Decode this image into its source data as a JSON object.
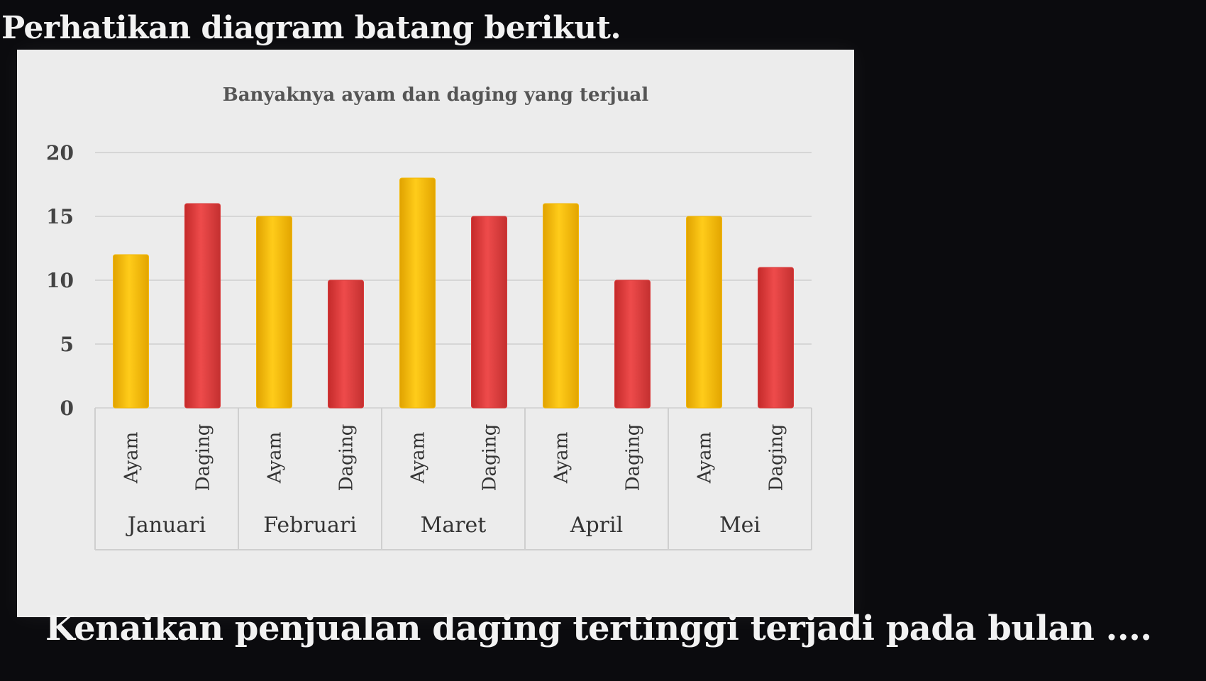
{
  "question": {
    "intro": "Perhatikan diagram batang berikut.",
    "prompt": "Kenaikan penjualan daging tertinggi terjadi pada bulan ...."
  },
  "colors": {
    "ayam": "#f2b705",
    "daging": "#d93a3a",
    "background": "#0b0b0e",
    "card": "#ececec"
  },
  "chart_data": {
    "type": "bar",
    "title": "Banyaknya ayam dan daging yang terjual",
    "ylim": [
      0,
      20
    ],
    "yticks": [
      "0",
      "5",
      "10",
      "15",
      "20"
    ],
    "grid": true,
    "groups": [
      "Januari",
      "Februari",
      "Maret",
      "April",
      "Mei"
    ],
    "subcategories": [
      "Ayam",
      "Daging"
    ],
    "bars": [
      {
        "group": "Januari",
        "label": "Ayam",
        "value": 12
      },
      {
        "group": "Januari",
        "label": "Daging",
        "value": 16
      },
      {
        "group": "Februari",
        "label": "Ayam",
        "value": 15
      },
      {
        "group": "Februari",
        "label": "Daging",
        "value": 10
      },
      {
        "group": "Maret",
        "label": "Ayam",
        "value": 18
      },
      {
        "group": "Maret",
        "label": "Daging",
        "value": 15
      },
      {
        "group": "April",
        "label": "Ayam",
        "value": 16
      },
      {
        "group": "April",
        "label": "Daging",
        "value": 10
      },
      {
        "group": "Mei",
        "label": "Ayam",
        "value": 15
      },
      {
        "group": "Mei",
        "label": "Daging",
        "value": 11
      }
    ]
  }
}
